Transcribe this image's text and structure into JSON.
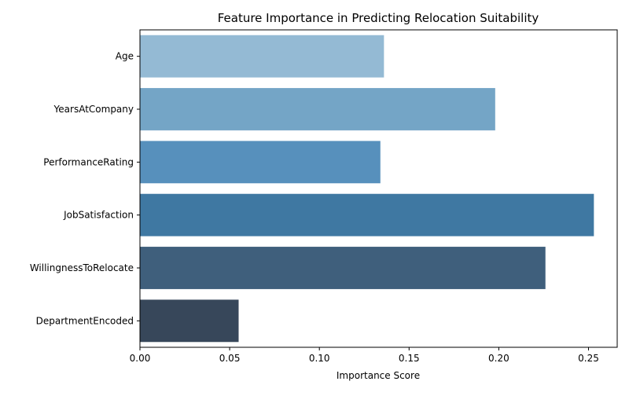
{
  "chart_data": {
    "type": "bar",
    "orientation": "horizontal",
    "title": "Feature Importance in Predicting Relocation Suitability",
    "xlabel": "Importance Score",
    "ylabel": "",
    "categories": [
      "Age",
      "YearsAtCompany",
      "PerformanceRating",
      "JobSatisfaction",
      "WillingnessToRelocate",
      "DepartmentEncoded"
    ],
    "values": [
      0.136,
      0.198,
      0.134,
      0.253,
      0.226,
      0.055
    ],
    "colors": [
      "#94bad4",
      "#74a5c6",
      "#5790bc",
      "#3f78a2",
      "#3f5f7c",
      "#37475a"
    ],
    "xlim": [
      0,
      0.266
    ],
    "xticks": [
      "0.00",
      "0.05",
      "0.10",
      "0.15",
      "0.20",
      "0.25"
    ],
    "grid": false,
    "legend": "none"
  }
}
